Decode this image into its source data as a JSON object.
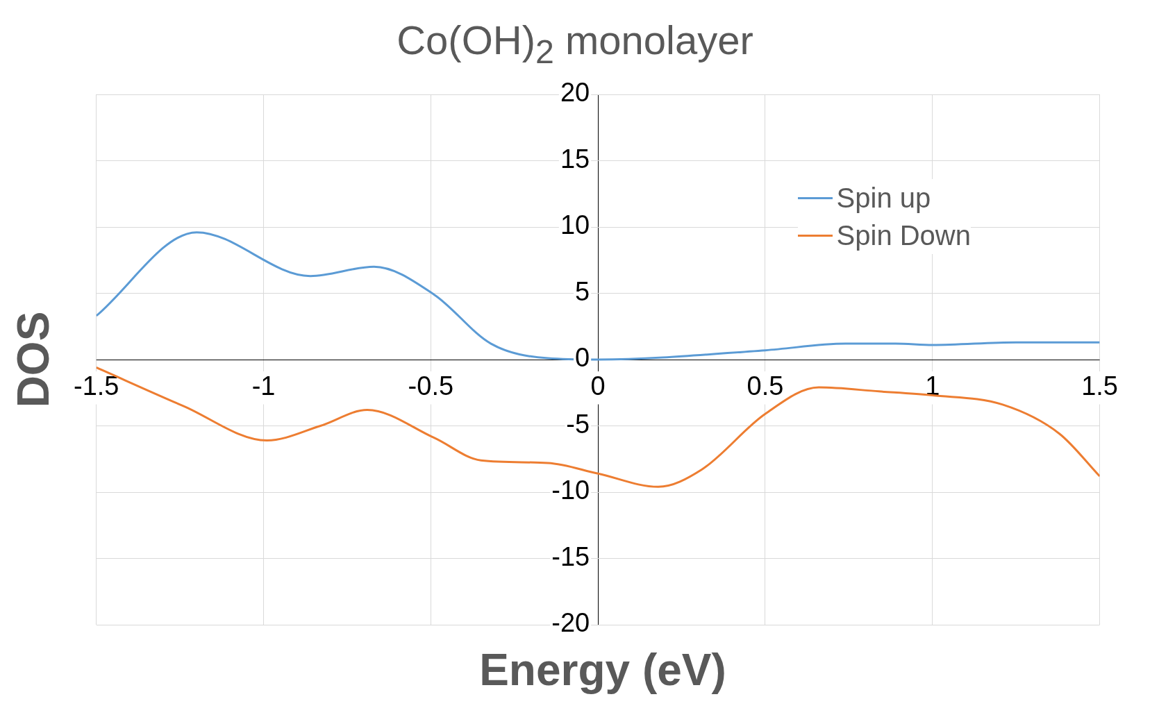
{
  "chart_data": {
    "type": "line",
    "title": "Co(OH)$_{2}$ monolayer",
    "xlabel": "Energy (eV)",
    "ylabel": "DOS",
    "xlim": [
      -1.5,
      1.5
    ],
    "xticks": [
      -1.5,
      -1,
      -0.5,
      0,
      0.5,
      1,
      1.5
    ],
    "ylim": [
      -20,
      20
    ],
    "yticks": [
      -20,
      -15,
      -10,
      -5,
      0,
      5,
      10,
      15,
      20
    ],
    "grid": true,
    "legend": "top right",
    "series": [
      {
        "name": "Spin up",
        "color": "#5b9bd5",
        "x": [
          -1.5,
          -1.2,
          -0.86,
          -0.67,
          -0.49,
          -0.32,
          -0.15,
          0,
          0.5,
          0.74,
          0.89,
          1,
          1.25,
          1.5
        ],
        "values": [
          3.3,
          9.6,
          6.3,
          7,
          4.9,
          1.2,
          0.1,
          0,
          0.7,
          1.2,
          1.2,
          1.1,
          1.3,
          1.3
        ]
      },
      {
        "name": "Spin Down",
        "color": "#ed7d31",
        "x": [
          -1.5,
          -1.24,
          -0.99,
          -0.83,
          -0.69,
          -0.49,
          -0.35,
          -0.15,
          0,
          0.18,
          0.31,
          0.5,
          0.66,
          0.84,
          1,
          1.21,
          1.38,
          1.5
        ],
        "values": [
          -0.6,
          -3.5,
          -6.1,
          -5,
          -3.8,
          -5.9,
          -7.6,
          -7.8,
          -8.6,
          -9.6,
          -8.3,
          -4.1,
          -2.1,
          -2.4,
          -2.7,
          -3.4,
          -5.6,
          -8.8
        ]
      }
    ]
  }
}
